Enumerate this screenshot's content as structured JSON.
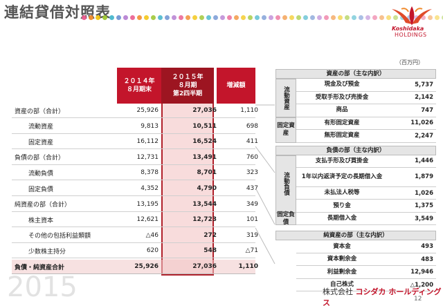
{
  "title": "連結貸借対照表",
  "logo": {
    "line1": "Koshidaka",
    "line2": "HOLDINGS"
  },
  "unit": "（百万円）",
  "main_table": {
    "headers": {
      "col1": [
        "２０１４年",
        "８月期末"
      ],
      "col2": [
        "２０１５年",
        "８月期",
        "第2四半期"
      ],
      "col3": [
        "増減額"
      ]
    },
    "rows": [
      {
        "label": "資産の部（合計）",
        "sub": false,
        "v1": "25,926",
        "v2": "27,036",
        "v3": "1,110"
      },
      {
        "label": "流動資産",
        "sub": true,
        "v1": "9,813",
        "v2": "10,511",
        "v3": "698"
      },
      {
        "label": "固定資産",
        "sub": true,
        "v1": "16,112",
        "v2": "16,524",
        "v3": "411"
      },
      {
        "label": "負債の部（合計）",
        "sub": false,
        "v1": "12,731",
        "v2": "13,491",
        "v3": "760"
      },
      {
        "label": "流動負債",
        "sub": true,
        "v1": "8,378",
        "v2": "8,701",
        "v3": "323"
      },
      {
        "label": "固定負債",
        "sub": true,
        "v1": "4,352",
        "v2": "4,790",
        "v3": "437"
      },
      {
        "label": "純資産の部（合計）",
        "sub": false,
        "v1": "13,195",
        "v2": "13,544",
        "v3": "349"
      },
      {
        "label": "株主資本",
        "sub": true,
        "v1": "12,621",
        "v2": "12,723",
        "v3": "101"
      },
      {
        "label": "その他の包括利益類額",
        "sub": true,
        "v1": "△46",
        "v2": "272",
        "v3": "319"
      },
      {
        "label": "少数株主持分",
        "sub": true,
        "v1": "620",
        "v2": "548",
        "v3": "△71"
      },
      {
        "label": "負債・純資産合計",
        "sub": false,
        "total": true,
        "v1": "25,926",
        "v2": "27,036",
        "v3": "1,110"
      }
    ]
  },
  "side_table": {
    "assets": {
      "header": "資産の部（主な内訳）",
      "groups": [
        {
          "cat": "流動資産",
          "items": [
            {
              "name": "現金及び預金",
              "value": "5,737"
            },
            {
              "name": "受取手形及び売掛金",
              "value": "2,142"
            },
            {
              "name": "商品",
              "value": "747"
            }
          ]
        },
        {
          "cat": "固定資産",
          "items": [
            {
              "name": "有形固定資産",
              "value": "11,026"
            },
            {
              "name": "無形固定資産",
              "value": "2,247"
            }
          ]
        }
      ]
    },
    "liabilities": {
      "header": "負債の部（主な内訳）",
      "groups": [
        {
          "cat": "流動負債",
          "items": [
            {
              "name": "支払手形及び買掛金",
              "value": "1,446"
            },
            {
              "name": "1年以内返済予定の長期借入金",
              "value": "1,879"
            },
            {
              "name": "未払法人税等",
              "value": "1,026"
            },
            {
              "name": "預り金",
              "value": "1,375"
            }
          ]
        },
        {
          "cat": "固定負債",
          "items": [
            {
              "name": "長期借入金",
              "value": "3,549"
            }
          ]
        }
      ]
    },
    "equity": {
      "header": "純資産の部（主な内訳）",
      "items": [
        {
          "name": "資本金",
          "value": "493"
        },
        {
          "name": "資本剰余金",
          "value": "483"
        },
        {
          "name": "利益剰余金",
          "value": "12,946"
        },
        {
          "name": "自己株式",
          "value": "△1,200"
        }
      ]
    }
  },
  "footer": {
    "watermark": "2015",
    "company_prefix": "株式会社",
    "company_name": "コシダカ ホールディングス",
    "page": "12"
  },
  "colors": {
    "accent": "#c3152b",
    "highlight": "#f8dcdc",
    "header_gray": "#e5e5e5"
  }
}
